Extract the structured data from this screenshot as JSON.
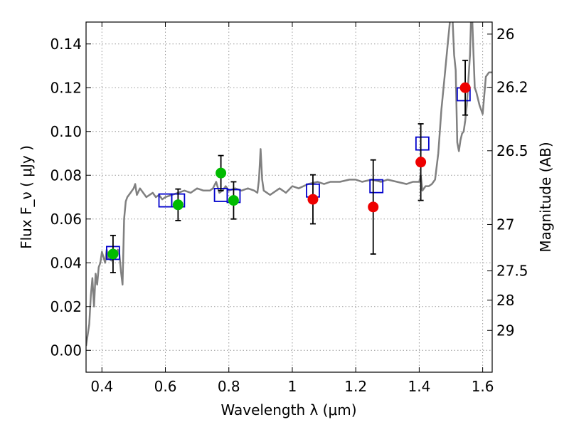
{
  "chart_data": {
    "type": "scatter",
    "title": "",
    "xlabel": "Wavelength  λ (μm)",
    "ylabel": "Flux  F_ν  ( μJy )",
    "ylabel_right": "Magnitude (AB)",
    "xlim": [
      0.35,
      1.63
    ],
    "ylim": [
      -0.01,
      0.15
    ],
    "grid": true,
    "x_ticks": [
      0.4,
      0.6,
      0.8,
      1.0,
      1.2,
      1.4,
      1.6
    ],
    "x_tick_labels": [
      "0.4",
      "0.6",
      "0.8",
      "1",
      "1.2",
      "1.4",
      "1.6"
    ],
    "y_ticks": [
      0.0,
      0.02,
      0.04,
      0.06,
      0.08,
      0.1,
      0.12,
      0.14
    ],
    "y_tick_labels": [
      "0.00",
      "0.02",
      "0.04",
      "0.06",
      "0.08",
      "0.10",
      "0.12",
      "0.14"
    ],
    "right_ticks": [
      {
        "label": "26",
        "flux": 0.1445
      },
      {
        "label": "26.2",
        "flux": 0.1202
      },
      {
        "label": "26.5",
        "flux": 0.0912
      },
      {
        "label": "27",
        "flux": 0.0575
      },
      {
        "label": "27.5",
        "flux": 0.0363
      },
      {
        "label": "28",
        "flux": 0.0229
      },
      {
        "label": "29",
        "flux": 0.0091
      }
    ],
    "colors": {
      "model": "#808080",
      "model_flux": "#0000cc",
      "green_points": "#00bb00",
      "red_points": "#ee0000",
      "errorbar": "#000000",
      "grid": "#999999"
    },
    "series": [
      {
        "kind": "model_spectrum",
        "x": [
          0.35,
          0.36,
          0.365,
          0.37,
          0.375,
          0.38,
          0.385,
          0.39,
          0.395,
          0.4,
          0.41,
          0.415,
          0.42,
          0.43,
          0.44,
          0.45,
          0.455,
          0.46,
          0.465,
          0.47,
          0.475,
          0.48,
          0.49,
          0.5,
          0.505,
          0.51,
          0.52,
          0.53,
          0.54,
          0.55,
          0.56,
          0.57,
          0.58,
          0.59,
          0.6,
          0.62,
          0.64,
          0.66,
          0.68,
          0.7,
          0.72,
          0.74,
          0.75,
          0.76,
          0.77,
          0.78,
          0.79,
          0.8,
          0.82,
          0.84,
          0.86,
          0.88,
          0.89,
          0.895,
          0.9,
          0.905,
          0.91,
          0.93,
          0.96,
          0.98,
          1.0,
          1.02,
          1.05,
          1.08,
          1.1,
          1.12,
          1.15,
          1.18,
          1.2,
          1.22,
          1.25,
          1.28,
          1.3,
          1.33,
          1.36,
          1.38,
          1.4,
          1.405,
          1.41,
          1.42,
          1.43,
          1.44,
          1.45,
          1.46,
          1.47,
          1.48,
          1.49,
          1.5,
          1.505,
          1.51,
          1.515,
          1.52,
          1.525,
          1.53,
          1.535,
          1.54,
          1.545,
          1.55,
          1.56,
          1.565,
          1.57,
          1.575,
          1.58,
          1.59,
          1.6,
          1.61,
          1.62,
          1.63
        ],
        "y": [
          0.002,
          0.012,
          0.025,
          0.033,
          0.02,
          0.035,
          0.03,
          0.038,
          0.04,
          0.045,
          0.04,
          0.046,
          0.042,
          0.041,
          0.043,
          0.046,
          0.044,
          0.036,
          0.03,
          0.06,
          0.068,
          0.07,
          0.072,
          0.074,
          0.076,
          0.071,
          0.074,
          0.072,
          0.07,
          0.071,
          0.072,
          0.07,
          0.071,
          0.069,
          0.07,
          0.071,
          0.072,
          0.073,
          0.072,
          0.074,
          0.073,
          0.073,
          0.074,
          0.077,
          0.072,
          0.073,
          0.075,
          0.073,
          0.074,
          0.073,
          0.074,
          0.073,
          0.072,
          0.078,
          0.092,
          0.078,
          0.073,
          0.071,
          0.074,
          0.072,
          0.075,
          0.074,
          0.076,
          0.077,
          0.076,
          0.077,
          0.077,
          0.078,
          0.078,
          0.077,
          0.078,
          0.077,
          0.078,
          0.077,
          0.076,
          0.077,
          0.077,
          0.08,
          0.073,
          0.075,
          0.075,
          0.076,
          0.078,
          0.09,
          0.11,
          0.125,
          0.14,
          0.155,
          0.152,
          0.135,
          0.128,
          0.095,
          0.091,
          0.096,
          0.099,
          0.1,
          0.105,
          0.112,
          0.135,
          0.16,
          0.14,
          0.12,
          0.118,
          0.112,
          0.108,
          0.125,
          0.127,
          0.127
        ]
      },
      {
        "kind": "model_flux_boxes",
        "points": [
          {
            "x": 0.435,
            "y": 0.0445
          },
          {
            "x": 0.6,
            "y": 0.0685
          },
          {
            "x": 0.64,
            "y": 0.0685
          },
          {
            "x": 0.775,
            "y": 0.071
          },
          {
            "x": 0.815,
            "y": 0.0705
          },
          {
            "x": 1.065,
            "y": 0.073
          },
          {
            "x": 1.265,
            "y": 0.075
          },
          {
            "x": 1.41,
            "y": 0.0945
          },
          {
            "x": 1.54,
            "y": 0.117
          }
        ]
      },
      {
        "kind": "observed_green",
        "points": [
          {
            "x": 0.435,
            "y": 0.044,
            "err": 0.0085
          },
          {
            "x": 0.64,
            "y": 0.0665,
            "err": 0.0072
          },
          {
            "x": 0.775,
            "y": 0.081,
            "err": 0.008
          },
          {
            "x": 0.815,
            "y": 0.0685,
            "err": 0.0085
          }
        ]
      },
      {
        "kind": "observed_red",
        "points": [
          {
            "x": 1.065,
            "y": 0.069,
            "err": 0.0112
          },
          {
            "x": 1.255,
            "y": 0.0655,
            "err": 0.0215
          },
          {
            "x": 1.405,
            "y": 0.086,
            "err": 0.0175
          },
          {
            "x": 1.545,
            "y": 0.12,
            "err": 0.0125
          }
        ]
      }
    ]
  }
}
